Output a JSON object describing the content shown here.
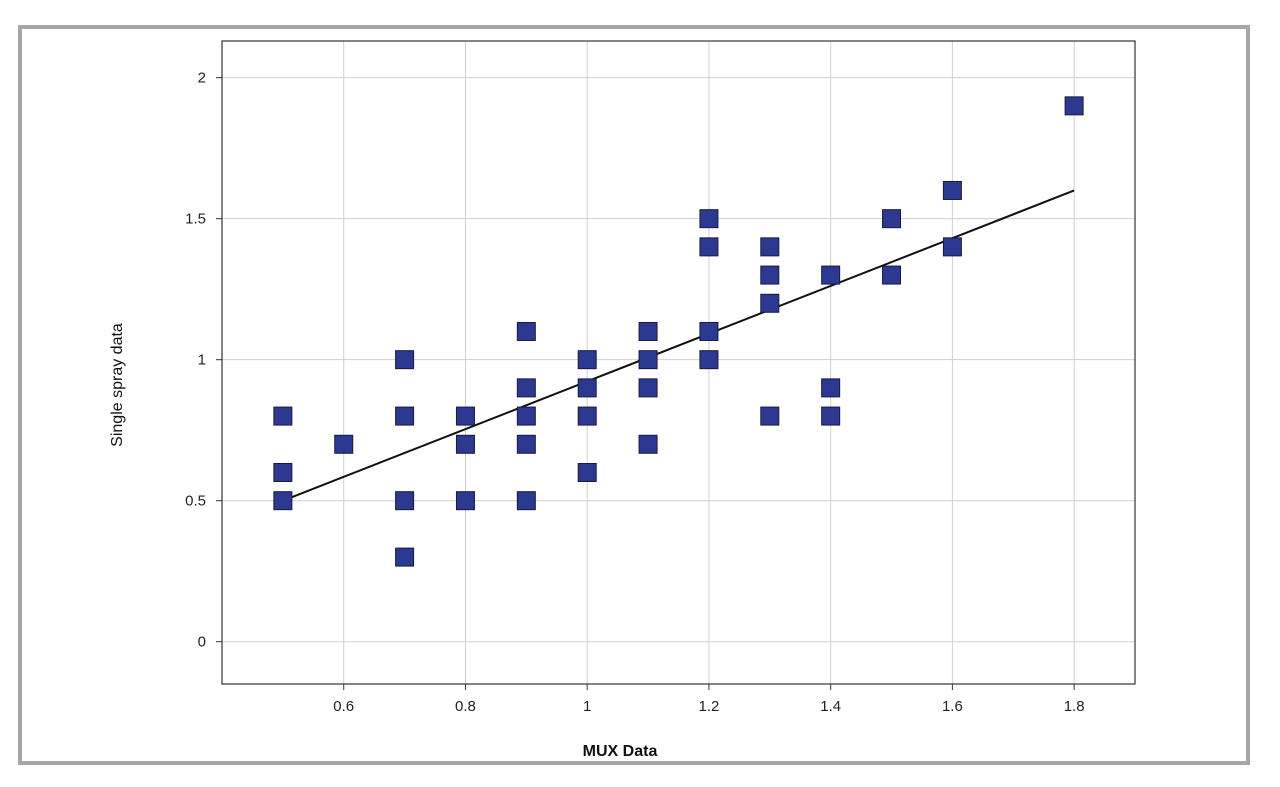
{
  "chart_data": {
    "type": "scatter",
    "title": "",
    "xlabel": "MUX Data",
    "ylabel": "Single spray data",
    "xlim": [
      0.4,
      1.9
    ],
    "ylim": [
      -0.15,
      2.13
    ],
    "x_ticks": [
      0.6,
      0.8,
      1,
      1.2,
      1.4,
      1.6,
      1.8
    ],
    "x_tick_labels": [
      "0.6",
      "0.8",
      "1",
      "1.2",
      "1.4",
      "1.6",
      "1.8"
    ],
    "y_ticks": [
      0,
      0.5,
      1,
      1.5,
      2
    ],
    "y_tick_labels": [
      "0",
      "0.5",
      "1",
      "1.5",
      "2"
    ],
    "grid": true,
    "marker": "square",
    "marker_color": "#2b3990",
    "marker_edge_color": "#1a1a40",
    "trendline_color": "#111111",
    "grid_color": "#cfcfcf",
    "series": [
      {
        "points": [
          {
            "x": 0.5,
            "y": 0.8
          },
          {
            "x": 0.5,
            "y": 0.6
          },
          {
            "x": 0.5,
            "y": 0.5
          },
          {
            "x": 0.6,
            "y": 0.7
          },
          {
            "x": 0.7,
            "y": 1.0
          },
          {
            "x": 0.7,
            "y": 0.8
          },
          {
            "x": 0.7,
            "y": 0.5
          },
          {
            "x": 0.7,
            "y": 0.3
          },
          {
            "x": 0.8,
            "y": 0.8
          },
          {
            "x": 0.8,
            "y": 0.7
          },
          {
            "x": 0.8,
            "y": 0.5
          },
          {
            "x": 0.9,
            "y": 1.1
          },
          {
            "x": 0.9,
            "y": 0.9
          },
          {
            "x": 0.9,
            "y": 0.8
          },
          {
            "x": 0.9,
            "y": 0.7
          },
          {
            "x": 0.9,
            "y": 0.5
          },
          {
            "x": 1.0,
            "y": 1.0
          },
          {
            "x": 1.0,
            "y": 0.9
          },
          {
            "x": 1.0,
            "y": 0.8
          },
          {
            "x": 1.0,
            "y": 0.6
          },
          {
            "x": 1.1,
            "y": 1.1
          },
          {
            "x": 1.1,
            "y": 1.0
          },
          {
            "x": 1.1,
            "y": 0.9
          },
          {
            "x": 1.1,
            "y": 0.7
          },
          {
            "x": 1.2,
            "y": 1.5
          },
          {
            "x": 1.2,
            "y": 1.4
          },
          {
            "x": 1.2,
            "y": 1.1
          },
          {
            "x": 1.2,
            "y": 1.0
          },
          {
            "x": 1.3,
            "y": 1.4
          },
          {
            "x": 1.3,
            "y": 1.3
          },
          {
            "x": 1.3,
            "y": 1.2
          },
          {
            "x": 1.3,
            "y": 0.8
          },
          {
            "x": 1.4,
            "y": 1.3
          },
          {
            "x": 1.4,
            "y": 0.9
          },
          {
            "x": 1.4,
            "y": 0.8
          },
          {
            "x": 1.5,
            "y": 1.5
          },
          {
            "x": 1.5,
            "y": 1.3
          },
          {
            "x": 1.6,
            "y": 1.6
          },
          {
            "x": 1.6,
            "y": 1.4
          },
          {
            "x": 1.8,
            "y": 1.9
          }
        ]
      }
    ],
    "trendline": {
      "x": [
        0.5,
        1.8
      ],
      "y": [
        0.5,
        1.6
      ]
    }
  }
}
